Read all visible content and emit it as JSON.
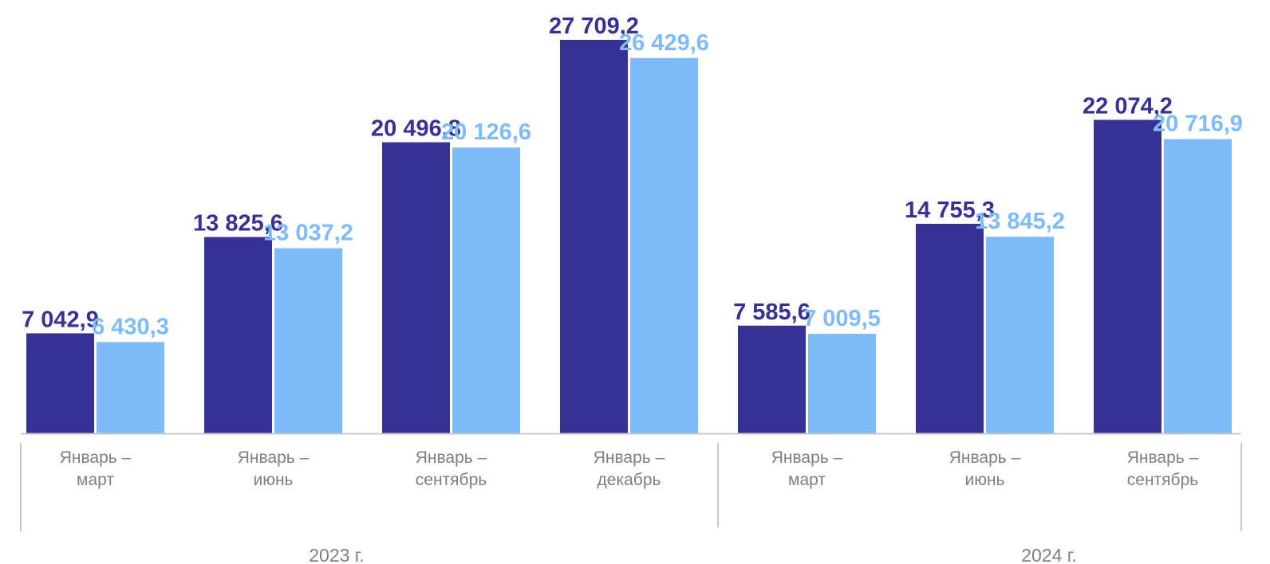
{
  "chart_data": {
    "type": "bar",
    "title": "",
    "xlabel": "",
    "ylabel": "",
    "ylim": [
      0,
      30500
    ],
    "grid": false,
    "legend": "none",
    "categories": [
      [
        "Январь –",
        "март"
      ],
      [
        "Январь –",
        "июнь"
      ],
      [
        "Январь –",
        "сентябрь"
      ],
      [
        "Январь –",
        "декабрь"
      ],
      [
        "Январь –",
        "март"
      ],
      [
        "Январь –",
        "июнь"
      ],
      [
        "Январь –",
        "сентябрь"
      ]
    ],
    "groups": [
      {
        "label": "2023 г.",
        "count": 4
      },
      {
        "label": "2024 г.",
        "count": 3
      }
    ],
    "series": [
      {
        "color": "#373193",
        "values": [
          7042.9,
          13825.6,
          20496.8,
          27709.2,
          7585.6,
          14755.3,
          22074.2
        ],
        "labels": [
          "7 042,9",
          "13 825,6",
          "20 496,8",
          "27 709,2",
          "7 585,6",
          "14 755,3",
          "22 074,2"
        ]
      },
      {
        "color": "#7fbbfb",
        "values": [
          6430.3,
          13037.2,
          20126.6,
          26429.6,
          7009.5,
          13845.2,
          20716.9
        ],
        "labels": [
          "6 430,3",
          "13 037,2",
          "20 126,6",
          "26 429,6",
          "7 009,5",
          "13 845,2",
          "20 716,9"
        ]
      }
    ]
  }
}
